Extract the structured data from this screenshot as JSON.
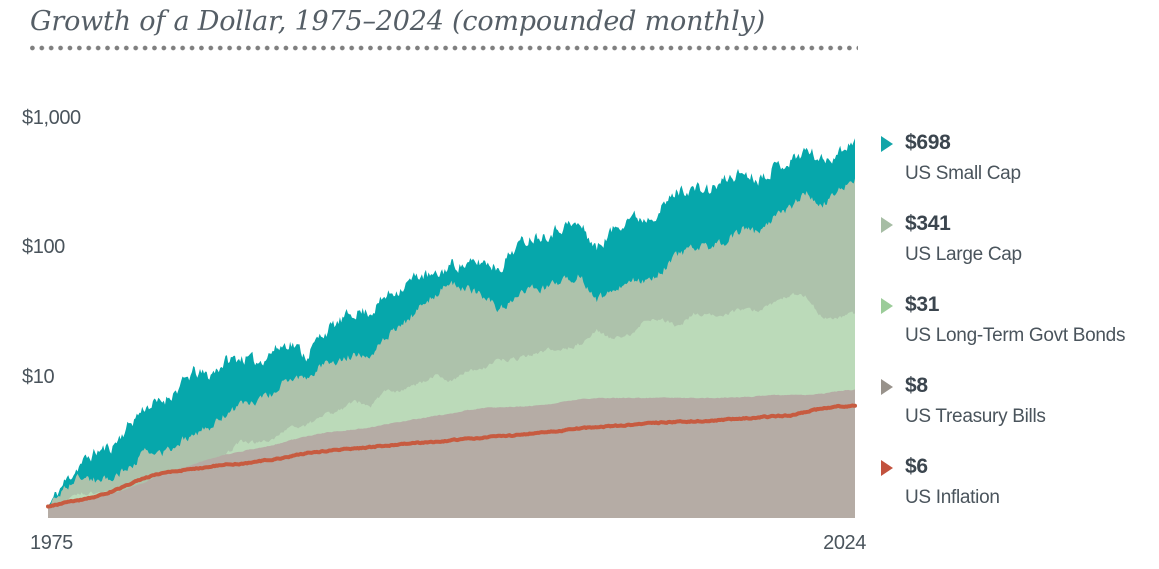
{
  "chart_data": {
    "type": "area",
    "title": "Growth of a Dollar, 1975–2024 (compounded monthly)",
    "y_scale": "log",
    "ylim": [
      1,
      1000
    ],
    "grid": false,
    "legend_position": "right",
    "y_tick_labels": [
      "$1,000",
      "$100",
      "$10"
    ],
    "y_tick_values": [
      1000,
      100,
      10
    ],
    "x_tick_labels": [
      "1975",
      "2024"
    ],
    "x_range": [
      1975,
      2024
    ],
    "years": [
      1975,
      1976,
      1977,
      1978,
      1979,
      1980,
      1981,
      1982,
      1983,
      1984,
      1985,
      1986,
      1987,
      1988,
      1989,
      1990,
      1991,
      1992,
      1993,
      1994,
      1995,
      1996,
      1997,
      1998,
      1999,
      2000,
      2001,
      2002,
      2003,
      2004,
      2005,
      2006,
      2007,
      2008,
      2009,
      2010,
      2011,
      2012,
      2013,
      2014,
      2015,
      2016,
      2017,
      2018,
      2019,
      2020,
      2021,
      2022,
      2023,
      2024
    ],
    "start_value": 1,
    "series": [
      {
        "name": "US Small Cap",
        "label": "$698",
        "final_value": 698,
        "style": "area",
        "color": "#06a7ab",
        "legend_color": "#12a5a9",
        "volatility": 0.042,
        "values": [
          1.52,
          2.13,
          2.65,
          2.92,
          4.25,
          5.9,
          6.4,
          8.0,
          10.9,
          10.2,
          13.3,
          14.2,
          13.0,
          16.2,
          18.7,
          14.6,
          21.7,
          26.3,
          32.1,
          32.0,
          42.7,
          50.1,
          62.0,
          58.7,
          74.5,
          72.9,
          78.1,
          70.1,
          103,
          122,
          129,
          150,
          148,
          98,
          137,
          175,
          168,
          199,
          275,
          286,
          275,
          336,
          383,
          342,
          420,
          467,
          570,
          470,
          545,
          698
        ]
      },
      {
        "name": "US Large Cap",
        "label": "$341",
        "final_value": 341,
        "style": "area",
        "color": "#adc2ab",
        "legend_color": "#a6bda4",
        "volatility": 0.028,
        "values": [
          1.37,
          1.7,
          1.58,
          1.68,
          1.99,
          2.63,
          2.5,
          3.04,
          3.72,
          3.95,
          5.2,
          6.17,
          6.5,
          7.57,
          9.96,
          9.65,
          12.6,
          13.55,
          14.91,
          15.1,
          20.77,
          25.54,
          34.05,
          43.78,
          52.99,
          48.17,
          42.44,
          33.06,
          42.54,
          47.17,
          49.49,
          57.3,
          60.45,
          38.09,
          48.17,
          55.42,
          56.58,
          65.63,
          86.87,
          98.76,
          100.1,
          112.1,
          136.6,
          130.6,
          171.7,
          203.3,
          261.6,
          214.2,
          270.5,
          341
        ]
      },
      {
        "name": "US Long-Term Govt Bonds",
        "label": "$31",
        "final_value": 31,
        "style": "area",
        "color": "#bbdab9",
        "legend_color": "#9bcc99",
        "volatility": 0.014,
        "values": [
          1.09,
          1.27,
          1.26,
          1.25,
          1.23,
          1.18,
          1.2,
          1.68,
          1.69,
          1.95,
          2.56,
          3.18,
          3.09,
          3.39,
          4.0,
          4.24,
          5.06,
          5.47,
          6.47,
          5.96,
          7.84,
          7.77,
          8.99,
          10.17,
          9.26,
          11.21,
          11.63,
          13.62,
          13.81,
          14.98,
          16.3,
          16.43,
          18.06,
          22.7,
          19.38,
          21.1,
          27.1,
          28.0,
          24.5,
          30.5,
          30.3,
          30.7,
          33.4,
          32.8,
          37.5,
          43.6,
          41.6,
          28.4,
          29.2,
          31
        ]
      },
      {
        "name": "US Treasury Bills",
        "label": "$8",
        "final_value": 8,
        "style": "area",
        "color": "#b5aca5",
        "legend_color": "#98928b",
        "volatility": 0.003,
        "values": [
          1.06,
          1.11,
          1.17,
          1.25,
          1.38,
          1.54,
          1.77,
          1.95,
          2.12,
          2.33,
          2.51,
          2.67,
          2.81,
          2.99,
          3.24,
          3.49,
          3.69,
          3.82,
          3.93,
          4.08,
          4.31,
          4.54,
          4.78,
          5.01,
          5.24,
          5.55,
          5.76,
          5.86,
          5.92,
          5.99,
          6.17,
          6.46,
          6.76,
          6.87,
          6.88,
          6.89,
          6.89,
          6.9,
          6.9,
          6.9,
          6.9,
          6.92,
          6.98,
          7.11,
          7.26,
          7.3,
          7.3,
          7.41,
          7.78,
          8
        ]
      },
      {
        "name": "US Inflation",
        "label": "$6",
        "final_value": 6,
        "style": "line",
        "color": "#c75b40",
        "legend_color": "#c2523e",
        "volatility": 0.004,
        "values": [
          1.07,
          1.12,
          1.2,
          1.31,
          1.48,
          1.66,
          1.81,
          1.88,
          1.95,
          2.03,
          2.11,
          2.13,
          2.22,
          2.32,
          2.43,
          2.58,
          2.66,
          2.73,
          2.81,
          2.88,
          2.95,
          3.05,
          3.1,
          3.15,
          3.24,
          3.35,
          3.4,
          3.48,
          3.55,
          3.66,
          3.79,
          3.88,
          4.04,
          4.08,
          4.19,
          4.25,
          4.38,
          4.45,
          4.52,
          4.55,
          4.58,
          4.68,
          4.78,
          4.87,
          4.98,
          5.05,
          5.4,
          5.75,
          5.94,
          6
        ]
      }
    ]
  },
  "theme": {
    "title_color": "#555e66",
    "axis_text_color": "#4a545c",
    "legend_value_color": "#3b454e",
    "dotted_rule_color": "#7f7f7f",
    "background": "#ffffff"
  },
  "legend_tops": [
    131,
    212,
    293,
    374,
    455
  ]
}
